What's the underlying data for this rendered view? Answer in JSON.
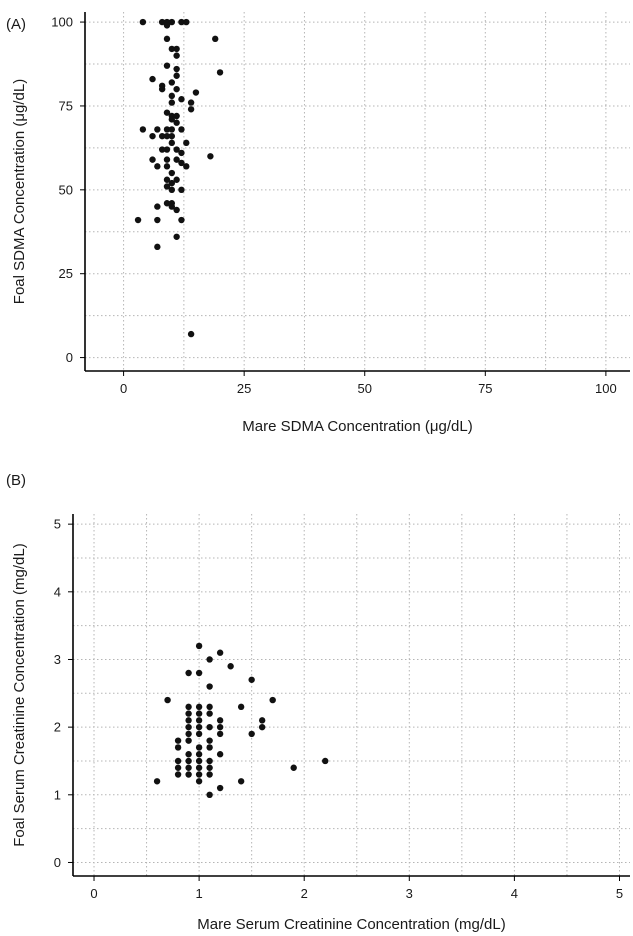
{
  "chart_data": [
    {
      "panel_label": "(A)",
      "type": "scatter",
      "xlabel": "Mare SDMA Concentration (μg/dL)",
      "ylabel": "Foal SDMA Concentration (μg/dL)",
      "xlim": [
        -8,
        105
      ],
      "ylim": [
        -4,
        103
      ],
      "xticks": [
        0,
        25,
        50,
        75,
        100
      ],
      "yticks": [
        0,
        25,
        50,
        75,
        100
      ],
      "grid": true,
      "points": [
        [
          4,
          100
        ],
        [
          8,
          100
        ],
        [
          9,
          100
        ],
        [
          10,
          100
        ],
        [
          12,
          100
        ],
        [
          13,
          100
        ],
        [
          9,
          99
        ],
        [
          19,
          95
        ],
        [
          9,
          95
        ],
        [
          20,
          85
        ],
        [
          11,
          92
        ],
        [
          10,
          92
        ],
        [
          11,
          90
        ],
        [
          9,
          87
        ],
        [
          11,
          86
        ],
        [
          11,
          84
        ],
        [
          6,
          83
        ],
        [
          10,
          82
        ],
        [
          8,
          81
        ],
        [
          8,
          80
        ],
        [
          11,
          80
        ],
        [
          15,
          79
        ],
        [
          10,
          78
        ],
        [
          12,
          77
        ],
        [
          14,
          76
        ],
        [
          10,
          76
        ],
        [
          14,
          74
        ],
        [
          9,
          73
        ],
        [
          10,
          72
        ],
        [
          11,
          72
        ],
        [
          10,
          71
        ],
        [
          11,
          70
        ],
        [
          4,
          68
        ],
        [
          7,
          68
        ],
        [
          9,
          68
        ],
        [
          10,
          68
        ],
        [
          12,
          68
        ],
        [
          6,
          66
        ],
        [
          8,
          66
        ],
        [
          9,
          66
        ],
        [
          10,
          66
        ],
        [
          13,
          64
        ],
        [
          10,
          64
        ],
        [
          8,
          62
        ],
        [
          9,
          62
        ],
        [
          11,
          62
        ],
        [
          12,
          61
        ],
        [
          18,
          60
        ],
        [
          6,
          59
        ],
        [
          9,
          59
        ],
        [
          11,
          59
        ],
        [
          12,
          58
        ],
        [
          13,
          57
        ],
        [
          7,
          57
        ],
        [
          9,
          57
        ],
        [
          10,
          55
        ],
        [
          9,
          53
        ],
        [
          11,
          53
        ],
        [
          10,
          52
        ],
        [
          9,
          51
        ],
        [
          10,
          50
        ],
        [
          12,
          50
        ],
        [
          9,
          46
        ],
        [
          10,
          46
        ],
        [
          7,
          45
        ],
        [
          10,
          45
        ],
        [
          11,
          44
        ],
        [
          3,
          41
        ],
        [
          7,
          41
        ],
        [
          12,
          41
        ],
        [
          11,
          36
        ],
        [
          7,
          33
        ],
        [
          14,
          7
        ]
      ]
    },
    {
      "panel_label": "(B)",
      "type": "scatter",
      "xlabel": "Mare Serum Creatinine Concentration (mg/dL)",
      "ylabel": "Foal Serum Creatinine Concentration (mg/dL)",
      "xlim": [
        -0.2,
        5.1
      ],
      "ylim": [
        -0.2,
        5.15
      ],
      "xticks": [
        0,
        1,
        2,
        3,
        4,
        5
      ],
      "yticks": [
        0,
        1,
        2,
        3,
        4,
        5
      ],
      "grid": true,
      "points": [
        [
          1.0,
          3.2
        ],
        [
          1.2,
          3.1
        ],
        [
          1.1,
          3.0
        ],
        [
          1.3,
          2.9
        ],
        [
          0.9,
          2.8
        ],
        [
          1.0,
          2.8
        ],
        [
          1.5,
          2.7
        ],
        [
          1.1,
          2.6
        ],
        [
          0.7,
          2.4
        ],
        [
          1.7,
          2.4
        ],
        [
          1.4,
          2.3
        ],
        [
          0.9,
          2.3
        ],
        [
          1.0,
          2.3
        ],
        [
          1.1,
          2.3
        ],
        [
          0.9,
          2.2
        ],
        [
          1.0,
          2.2
        ],
        [
          1.1,
          2.2
        ],
        [
          1.6,
          2.1
        ],
        [
          1.2,
          2.1
        ],
        [
          0.9,
          2.1
        ],
        [
          1.0,
          2.1
        ],
        [
          1.2,
          2.0
        ],
        [
          1.6,
          2.0
        ],
        [
          0.9,
          2.0
        ],
        [
          1.0,
          2.0
        ],
        [
          1.1,
          2.0
        ],
        [
          1.5,
          1.9
        ],
        [
          1.2,
          1.9
        ],
        [
          0.9,
          1.9
        ],
        [
          1.0,
          1.9
        ],
        [
          0.8,
          1.8
        ],
        [
          1.1,
          1.8
        ],
        [
          0.9,
          1.8
        ],
        [
          1.0,
          1.7
        ],
        [
          0.8,
          1.7
        ],
        [
          1.1,
          1.7
        ],
        [
          1.2,
          1.6
        ],
        [
          0.9,
          1.6
        ],
        [
          1.0,
          1.6
        ],
        [
          0.8,
          1.5
        ],
        [
          0.9,
          1.5
        ],
        [
          1.0,
          1.5
        ],
        [
          1.1,
          1.5
        ],
        [
          2.2,
          1.5
        ],
        [
          0.8,
          1.4
        ],
        [
          0.9,
          1.4
        ],
        [
          1.0,
          1.4
        ],
        [
          1.1,
          1.4
        ],
        [
          1.9,
          1.4
        ],
        [
          0.8,
          1.3
        ],
        [
          0.9,
          1.3
        ],
        [
          1.0,
          1.3
        ],
        [
          1.1,
          1.3
        ],
        [
          0.6,
          1.2
        ],
        [
          1.0,
          1.2
        ],
        [
          1.4,
          1.2
        ],
        [
          1.2,
          1.1
        ],
        [
          1.1,
          1.0
        ]
      ]
    }
  ]
}
